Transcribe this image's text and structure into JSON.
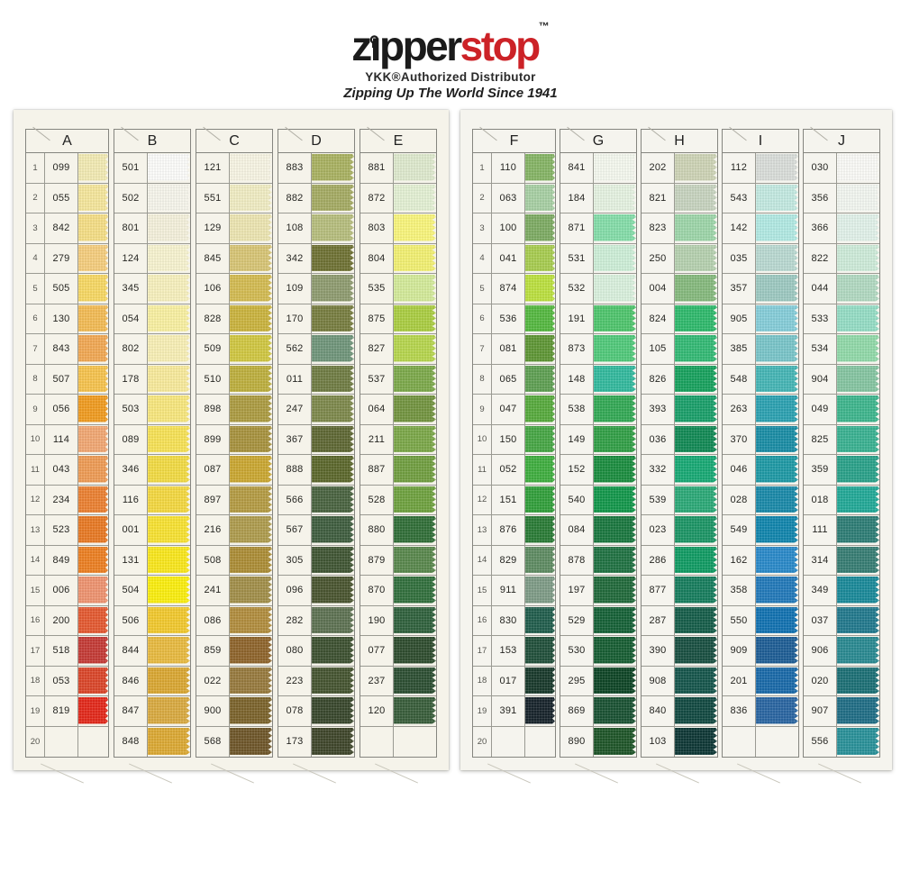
{
  "logo": {
    "brand_prefix": "z",
    "brand_mid": "pper",
    "brand_suffix": "stop",
    "tm": "™",
    "subtitle": "YKK®Authorized Distributor",
    "tagline": "Zipping Up The World Since 1941",
    "brand_black_color": "#1b1b1b",
    "brand_red_color": "#cc2227"
  },
  "chart": {
    "row_count": 20,
    "pages": [
      {
        "name": "left-page",
        "columns": [
          {
            "letter": "A",
            "numbered": true,
            "rows": [
              [
                "099",
                "#F3EBB4"
              ],
              [
                "055",
                "#F6E79C"
              ],
              [
                "842",
                "#F6DF86"
              ],
              [
                "279",
                "#F6CE7E"
              ],
              [
                "505",
                "#F8D964"
              ],
              [
                "130",
                "#F4BC55"
              ],
              [
                "843",
                "#F2A954"
              ],
              [
                "507",
                "#F7C44E"
              ],
              [
                "056",
                "#F19C20"
              ],
              [
                "114",
                "#F2A873"
              ],
              [
                "043",
                "#EF9C55"
              ],
              [
                "234",
                "#EC8132"
              ],
              [
                "523",
                "#E97A24"
              ],
              [
                "849",
                "#ED8022"
              ],
              [
                "006",
                "#EF9470"
              ],
              [
                "200",
                "#E55A31"
              ],
              [
                "518",
                "#C53B36"
              ],
              [
                "053",
                "#DC472A"
              ],
              [
                "819",
                "#E4291B"
              ],
              [
                "",
                ""
              ]
            ]
          },
          {
            "letter": "B",
            "numbered": false,
            "rows": [
              [
                "501",
                "#FDFDFB"
              ],
              [
                "502",
                "#F7F6EC"
              ],
              [
                "801",
                "#F5F1DC"
              ],
              [
                "124",
                "#F8F4D0"
              ],
              [
                "345",
                "#F8F1BE"
              ],
              [
                "054",
                "#FAF1A2"
              ],
              [
                "802",
                "#F9F0B6"
              ],
              [
                "178",
                "#F9EB9C"
              ],
              [
                "503",
                "#F9E87E"
              ],
              [
                "089",
                "#F8E356"
              ],
              [
                "346",
                "#F3DC44"
              ],
              [
                "116",
                "#F5D940"
              ],
              [
                "001",
                "#F9E332"
              ],
              [
                "131",
                "#FBE81C"
              ],
              [
                "504",
                "#FCEF0E"
              ],
              [
                "506",
                "#F3CA2E"
              ],
              [
                "844",
                "#E9BB40"
              ],
              [
                "846",
                "#DBA833"
              ],
              [
                "847",
                "#DAAB41"
              ],
              [
                "848",
                "#DDAA34"
              ]
            ]
          },
          {
            "letter": "C",
            "numbered": false,
            "rows": [
              [
                "121",
                "#F8F5E4"
              ],
              [
                "551",
                "#F1EDC4"
              ],
              [
                "129",
                "#EDE6B2"
              ],
              [
                "845",
                "#D8C676"
              ],
              [
                "106",
                "#D4BC52"
              ],
              [
                "828",
                "#CBB43E"
              ],
              [
                "509",
                "#D1C842"
              ],
              [
                "510",
                "#BEB03E"
              ],
              [
                "898",
                "#AD9C42"
              ],
              [
                "899",
                "#A8933E"
              ],
              [
                "087",
                "#CBA832"
              ],
              [
                "897",
                "#B59C44"
              ],
              [
                "216",
                "#AF9C4E"
              ],
              [
                "508",
                "#AD8E36"
              ],
              [
                "241",
                "#A28F4A"
              ],
              [
                "086",
                "#B28E3E"
              ],
              [
                "859",
                "#8F652C"
              ],
              [
                "022",
                "#987B3E"
              ],
              [
                "900",
                "#7C642C"
              ],
              [
                "568",
                "#6F572A"
              ]
            ]
          },
          {
            "letter": "D",
            "numbered": false,
            "rows": [
              [
                "883",
                "#AAB262"
              ],
              [
                "882",
                "#A5AC64"
              ],
              [
                "108",
                "#B7BE7E"
              ],
              [
                "342",
                "#6F7234"
              ],
              [
                "109",
                "#8F9C70"
              ],
              [
                "170",
                "#787E40"
              ],
              [
                "562",
                "#70967B"
              ],
              [
                "011",
                "#707D44"
              ],
              [
                "247",
                "#7E894C"
              ],
              [
                "367",
                "#5F6834"
              ],
              [
                "888",
                "#5C682C"
              ],
              [
                "566",
                "#4A6440"
              ],
              [
                "567",
                "#3F5E3F"
              ],
              [
                "305",
                "#405634"
              ],
              [
                "096",
                "#4A5530"
              ],
              [
                "282",
                "#5E7253"
              ],
              [
                "080",
                "#3D5131"
              ],
              [
                "223",
                "#465531"
              ],
              [
                "078",
                "#39482D"
              ],
              [
                "173",
                "#3F472B"
              ]
            ]
          },
          {
            "letter": "E",
            "numbered": false,
            "rows": [
              [
                "881",
                "#DFEACE"
              ],
              [
                "872",
                "#E4F1D4"
              ],
              [
                "803",
                "#FAF67C"
              ],
              [
                "804",
                "#F3F172"
              ],
              [
                "535",
                "#D4EB9A"
              ],
              [
                "875",
                "#ABCE42"
              ],
              [
                "827",
                "#B7D64E"
              ],
              [
                "537",
                "#7DAA4B"
              ],
              [
                "064",
                "#739540"
              ],
              [
                "211",
                "#7CA849"
              ],
              [
                "887",
                "#719F41"
              ],
              [
                "528",
                "#6FA23F"
              ],
              [
                "880",
                "#316F38"
              ],
              [
                "879",
                "#59884D"
              ],
              [
                "870",
                "#32703D"
              ],
              [
                "190",
                "#30623D"
              ],
              [
                "077",
                "#2F4D2F"
              ],
              [
                "237",
                "#2D4F33"
              ],
              [
                "120",
                "#395E3B"
              ],
              [
                "",
                ""
              ]
            ]
          }
        ]
      },
      {
        "name": "right-page",
        "columns": [
          {
            "letter": "F",
            "numbered": true,
            "rows": [
              [
                "110",
                "#86B566"
              ],
              [
                "063",
                "#A8D0A4"
              ],
              [
                "100",
                "#7EAC64"
              ],
              [
                "041",
                "#A8CD50"
              ],
              [
                "874",
                "#BCE13F"
              ],
              [
                "536",
                "#55B941"
              ],
              [
                "081",
                "#5F9735"
              ],
              [
                "065",
                "#5FA053"
              ],
              [
                "047",
                "#57AB3D"
              ],
              [
                "150",
                "#47A745"
              ],
              [
                "052",
                "#3FAF3F"
              ],
              [
                "151",
                "#32A03B"
              ],
              [
                "876",
                "#2A7C36"
              ],
              [
                "829",
                "#5F8C63"
              ],
              [
                "911",
                "#7F9C87"
              ],
              [
                "830",
                "#215E4D"
              ],
              [
                "153",
                "#21503B"
              ],
              [
                "017",
                "#193A2C"
              ],
              [
                "391",
                "#18242C"
              ],
              [
                "",
                ""
              ]
            ]
          },
          {
            "letter": "G",
            "numbered": false,
            "rows": [
              [
                "841",
                "#F5F9EF"
              ],
              [
                "184",
                "#E6F3E2"
              ],
              [
                "871",
                "#85DEAA"
              ],
              [
                "531",
                "#CEEFD8"
              ],
              [
                "532",
                "#DAF1DE"
              ],
              [
                "191",
                "#4FC66D"
              ],
              [
                "873",
                "#51CA7B"
              ],
              [
                "148",
                "#33BA9E"
              ],
              [
                "538",
                "#33AA55"
              ],
              [
                "149",
                "#32A047"
              ],
              [
                "152",
                "#1B8E3F"
              ],
              [
                "540",
                "#13984B"
              ],
              [
                "084",
                "#1A783F"
              ],
              [
                "878",
                "#207243"
              ],
              [
                "197",
                "#216A3B"
              ],
              [
                "529",
                "#166237"
              ],
              [
                "530",
                "#175E33"
              ],
              [
                "295",
                "#0E4626"
              ],
              [
                "869",
                "#1A5233"
              ],
              [
                "890",
                "#1F5629"
              ]
            ]
          },
          {
            "letter": "H",
            "numbered": false,
            "rows": [
              [
                "202",
                "#CED4B6"
              ],
              [
                "821",
                "#C8D4C0"
              ],
              [
                "823",
                "#9ED6AA"
              ],
              [
                "250",
                "#B6D1B0"
              ],
              [
                "004",
                "#86BA7E"
              ],
              [
                "824",
                "#2FBA6C"
              ],
              [
                "105",
                "#33BA75"
              ],
              [
                "826",
                "#18A25E"
              ],
              [
                "393",
                "#1AA06A"
              ],
              [
                "036",
                "#128A55"
              ],
              [
                "332",
                "#18AA75"
              ],
              [
                "539",
                "#2CAA78"
              ],
              [
                "023",
                "#1C9666"
              ],
              [
                "286",
                "#119C64"
              ],
              [
                "877",
                "#177E5E"
              ],
              [
                "287",
                "#165E4A"
              ],
              [
                "390",
                "#195042"
              ],
              [
                "908",
                "#16564C"
              ],
              [
                "840",
                "#124A42"
              ],
              [
                "103",
                "#0E3836"
              ]
            ]
          },
          {
            "letter": "I",
            "numbered": false,
            "rows": [
              [
                "112",
                "#DADEDA"
              ],
              [
                "543",
                "#C4EAE2"
              ],
              [
                "142",
                "#B2EAE4"
              ],
              [
                "035",
                "#BADAD2"
              ],
              [
                "357",
                "#9ECAC2"
              ],
              [
                "905",
                "#86CEDA"
              ],
              [
                "385",
                "#7AC6CA"
              ],
              [
                "548",
                "#46B6B6"
              ],
              [
                "263",
                "#2CA2B2"
              ],
              [
                "370",
                "#1A8EA6"
              ],
              [
                "046",
                "#1E9AA6"
              ],
              [
                "028",
                "#1A8AAA"
              ],
              [
                "549",
                "#1186AE"
              ],
              [
                "162",
                "#2A8ACA"
              ],
              [
                "358",
                "#227ABA"
              ],
              [
                "550",
                "#1272B2"
              ],
              [
                "909",
                "#1E5E96"
              ],
              [
                "201",
                "#1A6AAA"
              ],
              [
                "836",
                "#2A66A2"
              ],
              [
                "",
                ""
              ]
            ]
          },
          {
            "letter": "J",
            "numbered": false,
            "rows": [
              [
                "030",
                "#FBFBF7"
              ],
              [
                "356",
                "#F3F7F1"
              ],
              [
                "366",
                "#E2F2EA"
              ],
              [
                "822",
                "#CEECDA"
              ],
              [
                "044",
                "#B2DAC2"
              ],
              [
                "533",
                "#96DEC6"
              ],
              [
                "534",
                "#92DAAA"
              ],
              [
                "904",
                "#86C6A2"
              ],
              [
                "049",
                "#3EB68E"
              ],
              [
                "825",
                "#3AB292"
              ],
              [
                "359",
                "#2AA28A"
              ],
              [
                "018",
                "#22AA98"
              ],
              [
                "111",
                "#2E7E76"
              ],
              [
                "314",
                "#377E74"
              ],
              [
                "349",
                "#1A8A9A"
              ],
              [
                "037",
                "#227A8E"
              ],
              [
                "906",
                "#2A8A92"
              ],
              [
                "020",
                "#1C7076"
              ],
              [
                "907",
                "#206E86"
              ],
              [
                "556",
                "#2A929A"
              ]
            ]
          }
        ]
      }
    ]
  }
}
